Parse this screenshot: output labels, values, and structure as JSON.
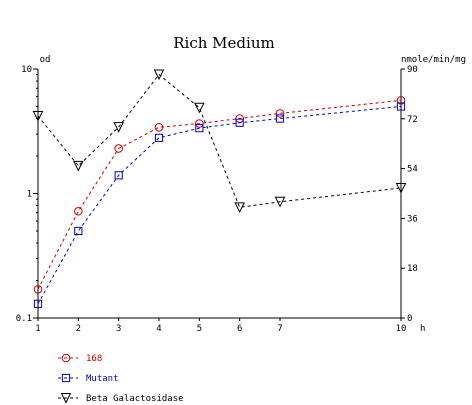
{
  "chart_data": {
    "type": "line",
    "title": "Rich Medium",
    "xlabel": "h",
    "y_left_label": "od",
    "y_right_label": "nmole/min/mg",
    "x_ticks": [
      1,
      2,
      3,
      4,
      5,
      6,
      7,
      10
    ],
    "x_range": [
      1,
      10
    ],
    "y_left_scale": "log",
    "y_left_range": [
      0.1,
      10
    ],
    "y_left_ticks": [
      "10",
      "1",
      "0.1"
    ],
    "y_right_range": [
      0,
      90
    ],
    "y_right_ticks": [
      0,
      18,
      36,
      54,
      72,
      90
    ],
    "legend_position": "bottom-left",
    "series": [
      {
        "name": "168",
        "axis": "left",
        "color": "#cc0000",
        "marker": "circle",
        "x": [
          1,
          2,
          3,
          4,
          5,
          6,
          7,
          10
        ],
        "y": [
          0.17,
          0.72,
          2.3,
          3.4,
          3.65,
          4.0,
          4.4,
          5.6
        ]
      },
      {
        "name": "Mutant",
        "axis": "left",
        "color": "#0000cc",
        "marker": "square",
        "x": [
          1,
          2,
          3,
          4,
          5,
          6,
          7,
          10
        ],
        "y": [
          0.13,
          0.5,
          1.4,
          2.8,
          3.35,
          3.7,
          4.0,
          5.0
        ]
      },
      {
        "name": "Beta Galactosidase",
        "axis": "right",
        "color": "#000000",
        "marker": "triangle-down",
        "x": [
          1,
          2,
          3,
          4,
          5,
          6,
          7,
          10
        ],
        "y": [
          73,
          55,
          69,
          88,
          76,
          40,
          42,
          47
        ]
      }
    ]
  }
}
